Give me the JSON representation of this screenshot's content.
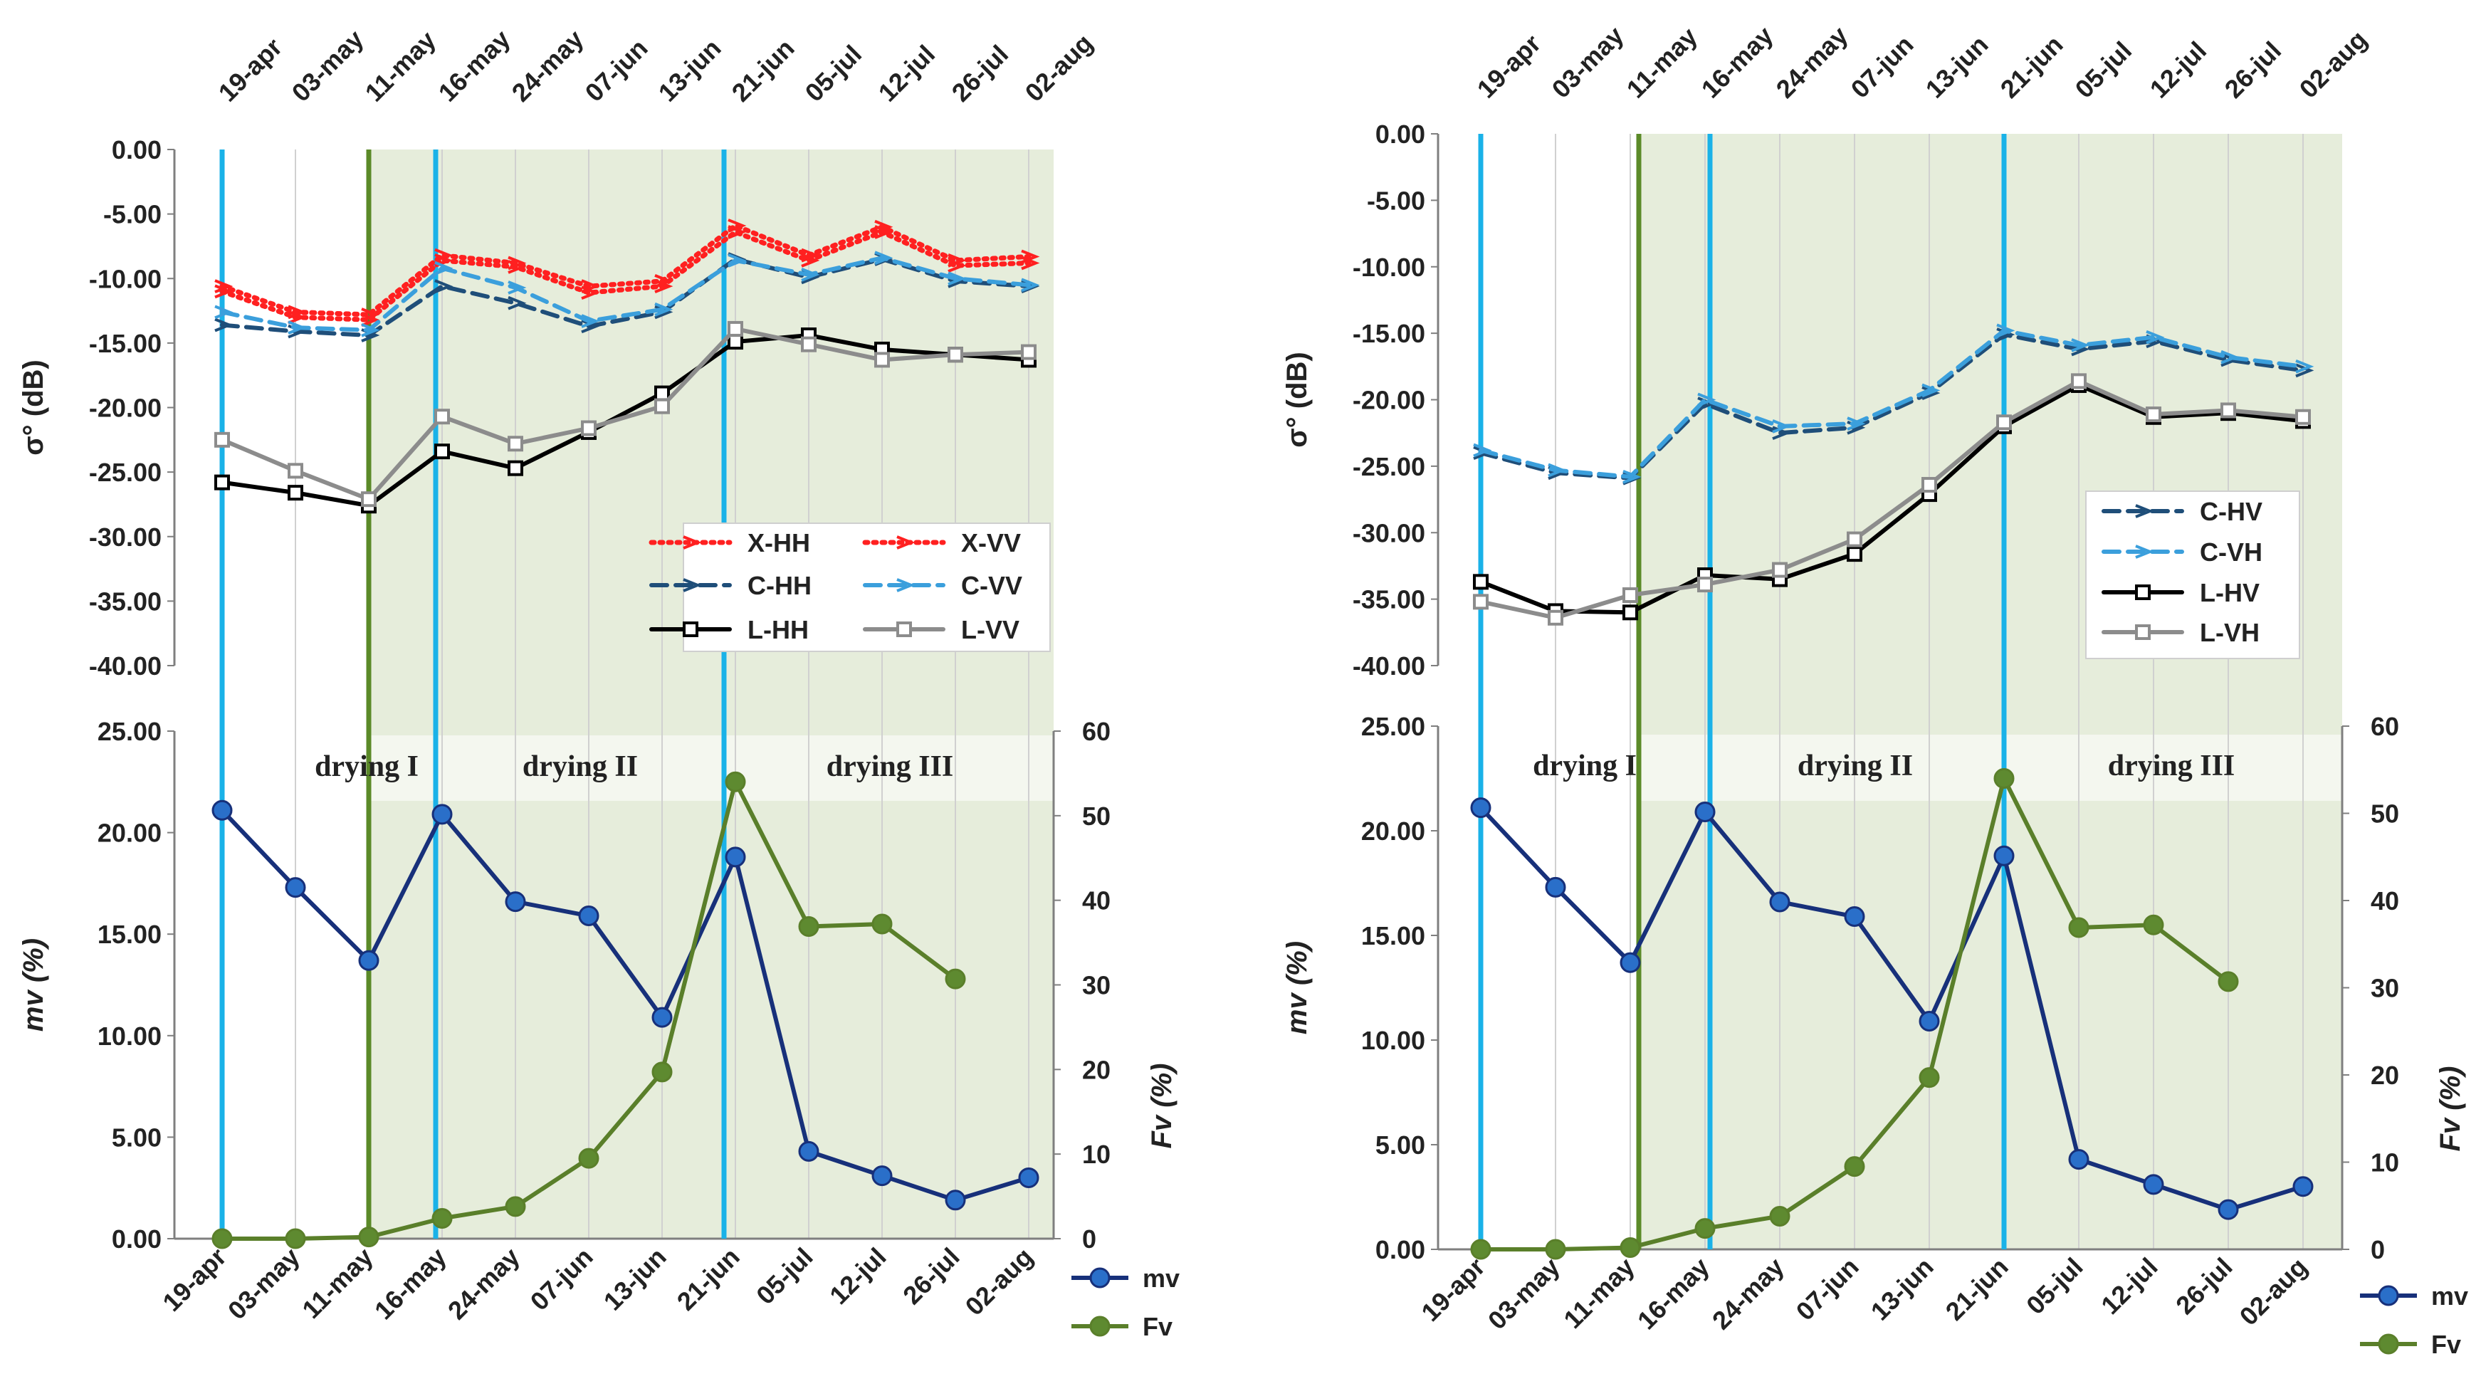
{
  "chart_data": [
    {
      "type": "line",
      "panel": "upper-left",
      "ylabel": "σ° (dB)",
      "ylim": [
        -40,
        0
      ],
      "yticks": [
        "0.00",
        "-5.00",
        "-10.00",
        "-15.00",
        "-20.00",
        "-25.00",
        "-30.00",
        "-35.00",
        "-40.00"
      ],
      "yticks_values": [
        0,
        -5,
        -10,
        -15,
        -20,
        -25,
        -30,
        -35,
        -40
      ],
      "top_dates": [
        "19-apr",
        "03-may",
        "11-may",
        "16-may",
        "24-may",
        "07-jun",
        "13-jun",
        "21-jun",
        "05-jul",
        "12-jul",
        "26-jul",
        "02-aug"
      ],
      "series": [
        {
          "name": "X-HH",
          "color": "#ff2020",
          "style": "dotted",
          "values": [
            -11.0,
            -13.0,
            -13.2,
            -8.6,
            -9.1,
            -11.1,
            -10.6,
            -6.4,
            -8.6,
            -6.4,
            -9.0,
            -8.8
          ]
        },
        {
          "name": "X-VV",
          "color": "#ff2020",
          "style": "dotted",
          "values": [
            -10.6,
            -12.6,
            -12.8,
            -8.2,
            -8.8,
            -10.6,
            -10.2,
            -5.9,
            -8.2,
            -6.0,
            -8.6,
            -8.3
          ]
        },
        {
          "name": "C-HH",
          "color": "#1f4e79",
          "style": "dashed",
          "values": [
            -13.6,
            -14.1,
            -14.4,
            -10.6,
            -11.9,
            -13.7,
            -12.6,
            -8.5,
            -9.9,
            -8.5,
            -10.2,
            -10.6
          ]
        },
        {
          "name": "C-VV",
          "color": "#3b9fdc",
          "style": "dashed",
          "values": [
            -12.6,
            -13.8,
            -14.0,
            -9.2,
            -10.7,
            -13.3,
            -12.4,
            -8.6,
            -9.7,
            -8.4,
            -10.0,
            -10.5
          ]
        },
        {
          "name": "L-HH",
          "color": "#000000",
          "style": "solid",
          "values": [
            -25.8,
            -26.6,
            -27.6,
            -23.4,
            -24.7,
            -21.9,
            -18.9,
            -14.9,
            -14.4,
            -15.5,
            -15.9,
            -16.3
          ]
        },
        {
          "name": "L-VV",
          "color": "#8c8c8c",
          "style": "solid",
          "values": [
            -22.5,
            -24.9,
            -27.1,
            -20.7,
            -22.8,
            -21.6,
            -19.9,
            -13.9,
            -15.1,
            -16.3,
            -15.9,
            -15.7
          ]
        }
      ],
      "legend": [
        "X-HH",
        "X-VV",
        "C-HH",
        "C-VV",
        "L-HH",
        "L-VV"
      ]
    },
    {
      "type": "line",
      "panel": "upper-right",
      "ylabel": "σ° (dB)",
      "ylim": [
        -40,
        0
      ],
      "yticks": [
        "0.00",
        "-5.00",
        "-10.00",
        "-15.00",
        "-20.00",
        "-25.00",
        "-30.00",
        "-35.00",
        "-40.00"
      ],
      "yticks_values": [
        0,
        -5,
        -10,
        -15,
        -20,
        -25,
        -30,
        -35,
        -40
      ],
      "top_dates": [
        "19-apr",
        "03-may",
        "11-may",
        "16-may",
        "24-may",
        "07-jun",
        "13-jun",
        "21-jun",
        "05-jul",
        "12-jul",
        "26-jul",
        "02-aug"
      ],
      "series": [
        {
          "name": "C-HV",
          "color": "#1f4e79",
          "style": "dashed",
          "values": [
            -24.0,
            -25.5,
            -25.9,
            -20.3,
            -22.5,
            -22.1,
            -19.5,
            -15.1,
            -16.2,
            -15.6,
            -17.0,
            -17.8
          ]
        },
        {
          "name": "C-VH",
          "color": "#3b9fdc",
          "style": "dashed",
          "values": [
            -23.8,
            -25.3,
            -25.8,
            -20.0,
            -22.0,
            -21.8,
            -19.3,
            -14.8,
            -15.9,
            -15.3,
            -16.8,
            -17.5
          ]
        },
        {
          "name": "L-HV",
          "color": "#000000",
          "style": "solid",
          "values": [
            -33.7,
            -35.9,
            -36.0,
            -33.2,
            -33.5,
            -31.6,
            -27.1,
            -22.0,
            -18.9,
            -21.3,
            -21.0,
            -21.6
          ]
        },
        {
          "name": "L-VH",
          "color": "#8c8c8c",
          "style": "solid",
          "values": [
            -35.2,
            -36.4,
            -34.7,
            -33.9,
            -32.8,
            -30.5,
            -26.4,
            -21.7,
            -18.6,
            -21.1,
            -20.8,
            -21.3
          ]
        }
      ],
      "legend": [
        "C-HV",
        "C-VH",
        "L-HV",
        "L-VH"
      ]
    },
    {
      "type": "line",
      "panel": "lower-left",
      "ylabel": "mv (%)",
      "y2label": "Fv (%)",
      "ylim": [
        0,
        25
      ],
      "y2lim": [
        0,
        60
      ],
      "yticks": [
        "25.00",
        "20.00",
        "15.00",
        "10.00",
        "5.00",
        "0.00"
      ],
      "yticks_values": [
        25,
        20,
        15,
        10,
        5,
        0
      ],
      "y2ticks": [
        "60",
        "50",
        "40",
        "30",
        "20",
        "10",
        "0"
      ],
      "y2ticks_values": [
        60,
        50,
        40,
        30,
        20,
        10,
        0
      ],
      "categories": [
        "19-apr",
        "03-may",
        "11-may",
        "16-may",
        "24-may",
        "07-jun",
        "13-jun",
        "21-jun",
        "05-jul",
        "12-jul",
        "26-jul",
        "02-aug"
      ],
      "series": [
        {
          "name": "mv",
          "axis": "left",
          "color": "#17307a",
          "values": [
            21.1,
            17.3,
            13.7,
            20.9,
            16.6,
            15.9,
            10.9,
            18.8,
            4.3,
            3.1,
            1.9,
            3.0
          ]
        },
        {
          "name": "Fv",
          "axis": "right",
          "color": "#5a7f2a",
          "values": [
            0,
            0,
            0.2,
            2.4,
            3.8,
            9.5,
            19.7,
            54.0,
            36.9,
            37.2,
            30.7,
            null
          ]
        }
      ],
      "phases": [
        "drying I",
        "drying II",
        "drying III"
      ],
      "legend": [
        "mv",
        "Fv"
      ]
    },
    {
      "type": "line",
      "panel": "lower-right",
      "ylabel": "mv (%)",
      "y2label": "Fv (%)",
      "ylim": [
        0,
        25
      ],
      "y2lim": [
        0,
        60
      ],
      "yticks": [
        "25.00",
        "20.00",
        "15.00",
        "10.00",
        "5.00",
        "0.00"
      ],
      "yticks_values": [
        25,
        20,
        15,
        10,
        5,
        0
      ],
      "y2ticks": [
        "60",
        "50",
        "40",
        "30",
        "20",
        "10",
        "0"
      ],
      "y2ticks_values": [
        60,
        50,
        40,
        30,
        20,
        10,
        0
      ],
      "categories": [
        "19-apr",
        "03-may",
        "11-may",
        "16-may",
        "24-may",
        "07-jun",
        "13-jun",
        "21-jun",
        "05-jul",
        "12-jul",
        "26-jul",
        "02-aug"
      ],
      "series": [
        {
          "name": "mv",
          "axis": "left",
          "color": "#17307a",
          "values": [
            21.1,
            17.3,
            13.7,
            20.9,
            16.6,
            15.9,
            10.9,
            18.8,
            4.3,
            3.1,
            1.9,
            3.0
          ]
        },
        {
          "name": "Fv",
          "axis": "right",
          "color": "#5a7f2a",
          "values": [
            0,
            0,
            0.2,
            2.4,
            3.8,
            9.5,
            19.7,
            54.0,
            36.9,
            37.2,
            30.7,
            null
          ]
        }
      ],
      "phases": [
        "drying I",
        "drying II",
        "drying III"
      ],
      "legend": [
        "mv",
        "Fv"
      ]
    }
  ],
  "colors": {
    "shade": "#e6eddb",
    "grid": "#d0d0d0",
    "event_blue": "#1ab2e8",
    "event_green": "#5b8a28"
  }
}
